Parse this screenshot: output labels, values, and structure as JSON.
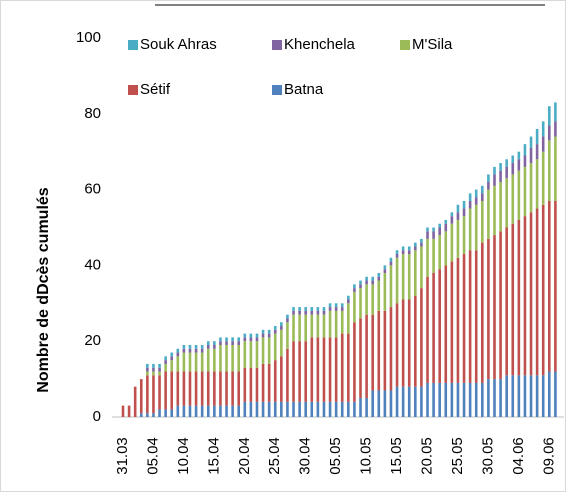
{
  "chart_data": {
    "type": "stacked_bar",
    "y_label": "Nombre de dDcès cumulés",
    "categories": [
      "31.03",
      null,
      null,
      null,
      null,
      "05.04",
      null,
      null,
      null,
      null,
      "10.04",
      null,
      null,
      null,
      null,
      "15.04",
      null,
      null,
      null,
      null,
      "20.04",
      null,
      null,
      null,
      null,
      "25.04",
      null,
      null,
      null,
      null,
      "30.04",
      null,
      null,
      null,
      null,
      "05.05",
      null,
      null,
      null,
      null,
      "10.05",
      null,
      null,
      null,
      null,
      "15.05",
      null,
      null,
      null,
      null,
      "20.05",
      null,
      null,
      null,
      null,
      "25.05",
      null,
      null,
      null,
      null,
      "30.05",
      null,
      null,
      null,
      null,
      "04.06",
      null,
      null,
      null,
      null,
      "09.06",
      null
    ],
    "series": [
      {
        "name": "Batna",
        "color": "#4f81bd",
        "values": [
          0,
          0,
          0,
          1,
          1,
          1,
          2,
          2,
          2,
          3,
          3,
          3,
          3,
          3,
          3,
          3,
          3,
          3,
          3,
          3,
          4,
          4,
          4,
          4,
          4,
          4,
          4,
          4,
          4,
          4,
          4,
          4,
          4,
          4,
          4,
          4,
          4,
          4,
          4,
          5,
          5,
          7,
          7,
          7,
          7,
          8,
          8,
          8,
          8,
          8,
          9,
          9,
          9,
          9,
          9,
          9,
          9,
          9,
          9,
          9,
          10,
          10,
          10,
          11,
          11,
          11,
          11,
          11,
          11,
          11,
          12,
          12
        ]
      },
      {
        "name": "Sétif",
        "color": "#c0504d",
        "values": [
          3,
          3,
          8,
          9,
          10,
          10,
          9,
          10,
          10,
          9,
          9,
          9,
          9,
          9,
          9,
          9,
          9,
          9,
          9,
          9,
          9,
          9,
          9,
          10,
          10,
          11,
          12,
          14,
          16,
          16,
          16,
          17,
          17,
          17,
          17,
          17,
          18,
          18,
          21,
          21,
          22,
          20,
          21,
          21,
          22,
          22,
          23,
          23,
          24,
          26,
          28,
          29,
          30,
          31,
          32,
          33,
          34,
          35,
          35,
          37,
          37,
          38,
          39,
          39,
          40,
          41,
          42,
          43,
          44,
          45,
          45,
          45
        ]
      },
      {
        "name": "M'Sila",
        "color": "#9bbb59",
        "values": [
          0,
          0,
          0,
          0,
          1,
          1,
          1,
          2,
          3,
          4,
          5,
          5,
          5,
          5,
          6,
          6,
          7,
          7,
          7,
          7,
          7,
          7,
          7,
          7,
          7,
          7,
          7,
          7,
          7,
          7,
          7,
          6,
          6,
          6,
          7,
          7,
          6,
          8,
          8,
          8,
          8,
          8,
          8,
          10,
          11,
          12,
          12,
          12,
          12,
          11,
          10,
          9,
          9,
          9,
          10,
          10,
          10,
          11,
          12,
          11,
          13,
          13,
          13,
          13,
          13,
          13,
          13,
          13,
          13,
          14,
          16,
          17
        ]
      },
      {
        "name": "Khenchela",
        "color": "#8064a2",
        "values": [
          0,
          0,
          0,
          0,
          1,
          1,
          1,
          1,
          1,
          1,
          1,
          1,
          1,
          1,
          1,
          1,
          1,
          1,
          1,
          1,
          1,
          1,
          1,
          1,
          1,
          1,
          1,
          1,
          1,
          1,
          1,
          1,
          1,
          1,
          1,
          1,
          1,
          1,
          1,
          1,
          1,
          1,
          1,
          1,
          1,
          1,
          1,
          1,
          1,
          1,
          2,
          2,
          2,
          2,
          2,
          2,
          2,
          2,
          2,
          2,
          2,
          3,
          3,
          3,
          3,
          3,
          3,
          4,
          4,
          4,
          4,
          4
        ]
      },
      {
        "name": "Souk Ahras",
        "color": "#4bacc6",
        "values": [
          0,
          0,
          0,
          0,
          1,
          1,
          1,
          1,
          1,
          1,
          1,
          1,
          1,
          1,
          1,
          1,
          1,
          1,
          1,
          1,
          1,
          1,
          1,
          1,
          1,
          1,
          1,
          1,
          1,
          1,
          1,
          1,
          1,
          1,
          1,
          1,
          1,
          1,
          1,
          1,
          1,
          1,
          1,
          1,
          1,
          1,
          1,
          1,
          1,
          1,
          1,
          1,
          1,
          1,
          1,
          2,
          2,
          2,
          2,
          2,
          2,
          2,
          2,
          2,
          2,
          2,
          3,
          3,
          4,
          4,
          5,
          5
        ]
      }
    ],
    "ylim": [
      0,
      100
    ],
    "yticks": [
      0,
      20,
      40,
      60,
      80,
      100
    ],
    "grid": false
  }
}
